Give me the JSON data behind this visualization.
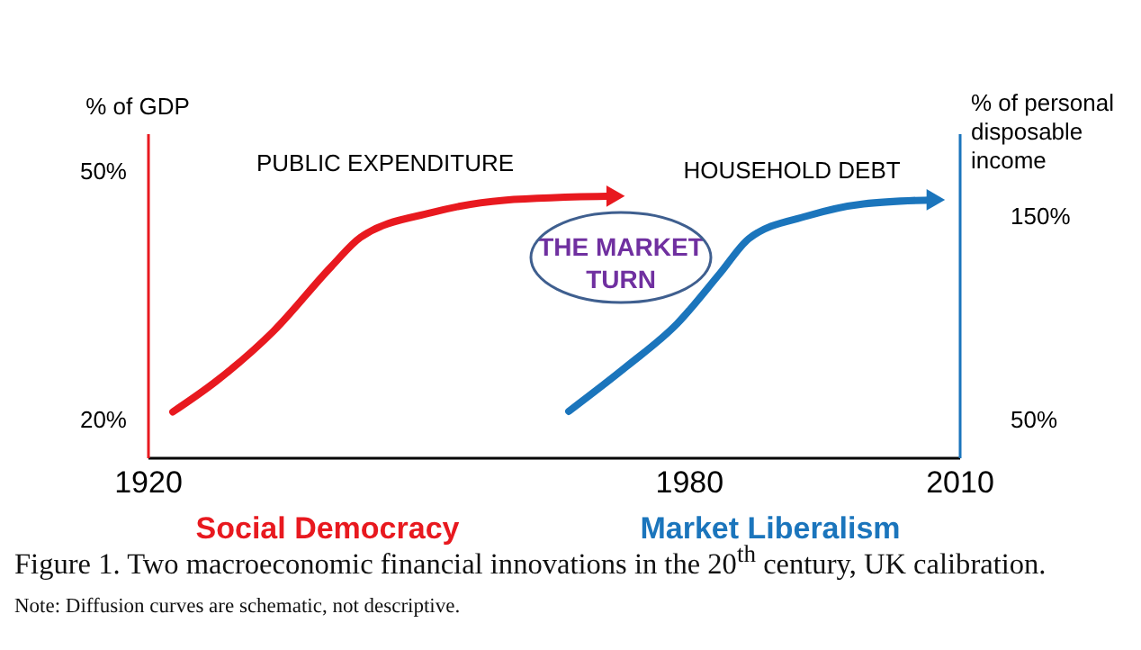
{
  "chart_data": {
    "type": "line",
    "xlim": [
      1920,
      2010
    ],
    "xticks": [
      1920,
      1980,
      2010
    ],
    "ylabel": "% of GDP",
    "y2label": "% of personal disposable income",
    "ylim": [
      15.4,
      54.6
    ],
    "yticks": [
      {
        "value": 20,
        "label": "20%"
      },
      {
        "value": 50,
        "label": "50%"
      }
    ],
    "y2lim": [
      31.4,
      190.7
    ],
    "y2ticks": [
      {
        "value": 50,
        "label": "50%"
      },
      {
        "value": 150,
        "label": "150%"
      }
    ],
    "series": [
      {
        "name": "PUBLIC EXPENDITURE",
        "color": "#e8191f",
        "x": [
          1922.8,
          1927.6,
          1934.0,
          1940.4,
          1943.6,
          1951.5,
          1959.5,
          1971.9
        ],
        "values": [
          20.9,
          24.6,
          30.7,
          38.5,
          42.0,
          45.0,
          46.5,
          47.0
        ]
      },
      {
        "name": "HOUSEHOLD DEBT",
        "color": "#1b75bc",
        "axis": "y2",
        "x": [
          1966.7,
          1973.1,
          1978.7,
          1983.5,
          1986.7,
          1993.1,
          1999.4,
          2007.4
        ],
        "values": [
          54,
          76,
          97,
          122,
          139,
          150,
          156,
          158
        ]
      }
    ],
    "annotations": [
      "THE MARKET TURN",
      "Social Democracy",
      "Market Liberalism",
      "Figure 1. Two macroeconomic financial innovations in the 20$^{th}$ century, UK calibration.",
      "Note: Diffusion curves are schematic, not descriptive."
    ]
  }
}
